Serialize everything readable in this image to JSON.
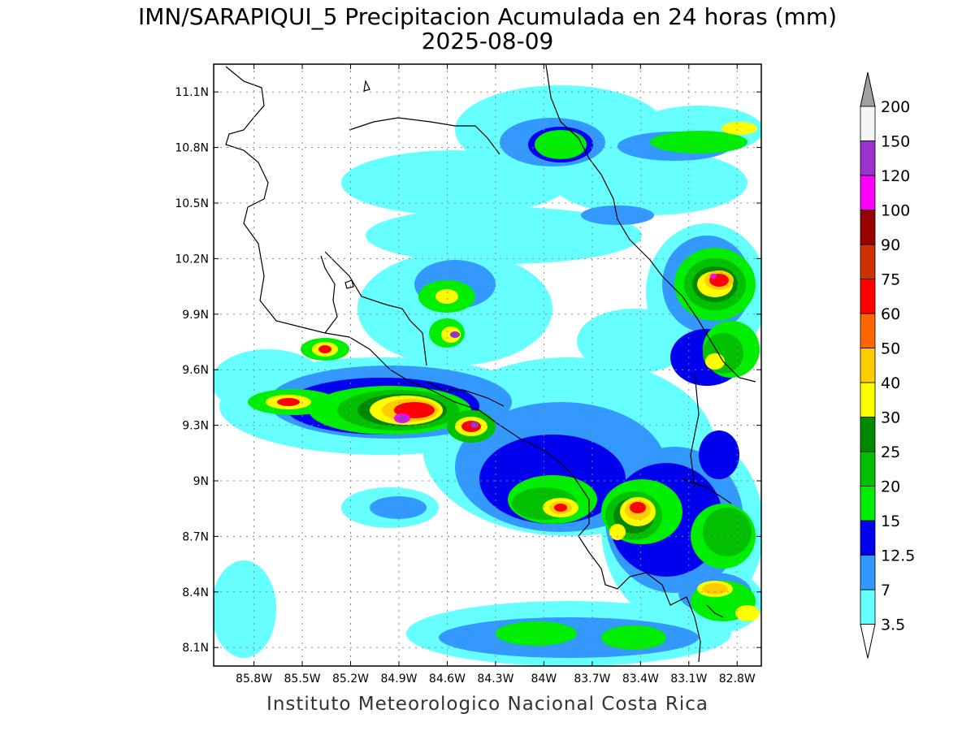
{
  "header": {
    "title": "IMN/SARAPIQUI_5 Precipitacion Acumulada en 24 horas (mm)",
    "date": "2025-08-09"
  },
  "footer": {
    "credit": "Instituto Meteorologico Nacional Costa Rica"
  },
  "map": {
    "lon_range": [
      -86.05,
      -82.65
    ],
    "lat_range": [
      8.0,
      11.25
    ],
    "lon_ticks": [
      {
        "value": -85.8,
        "label": "85.8W"
      },
      {
        "value": -85.5,
        "label": "85.5W"
      },
      {
        "value": -85.2,
        "label": "85.2W"
      },
      {
        "value": -84.9,
        "label": "84.9W"
      },
      {
        "value": -84.6,
        "label": "84.6W"
      },
      {
        "value": -84.3,
        "label": "84.3W"
      },
      {
        "value": -84.0,
        "label": "84W"
      },
      {
        "value": -83.7,
        "label": "83.7W"
      },
      {
        "value": -83.4,
        "label": "83.4W"
      },
      {
        "value": -83.1,
        "label": "83.1W"
      },
      {
        "value": -82.8,
        "label": "82.8W"
      }
    ],
    "lat_ticks": [
      {
        "value": 8.1,
        "label": "8.1N"
      },
      {
        "value": 8.4,
        "label": "8.4N"
      },
      {
        "value": 8.7,
        "label": "8.7N"
      },
      {
        "value": 9.0,
        "label": "9N"
      },
      {
        "value": 9.3,
        "label": "9.3N"
      },
      {
        "value": 9.6,
        "label": "9.6N"
      },
      {
        "value": 9.9,
        "label": "9.9N"
      },
      {
        "value": 10.2,
        "label": "10.2N"
      },
      {
        "value": 10.5,
        "label": "10.5N"
      },
      {
        "value": 10.8,
        "label": "10.8N"
      },
      {
        "value": 11.1,
        "label": "11.1N"
      }
    ],
    "grid": "dotted"
  },
  "colorbar": {
    "units": "mm",
    "bins": [
      {
        "label": "3.5",
        "color": "#66ffff"
      },
      {
        "label": "7",
        "color": "#3399ff"
      },
      {
        "label": "12.5",
        "color": "#0000ee"
      },
      {
        "label": "15",
        "color": "#00ee00"
      },
      {
        "label": "20",
        "color": "#00c000"
      },
      {
        "label": "25",
        "color": "#008800"
      },
      {
        "label": "30",
        "color": "#ffff00"
      },
      {
        "label": "40",
        "color": "#ffcc00"
      },
      {
        "label": "50",
        "color": "#ff6600"
      },
      {
        "label": "60",
        "color": "#ff0000"
      },
      {
        "label": "75",
        "color": "#cc3300"
      },
      {
        "label": "90",
        "color": "#990000"
      },
      {
        "label": "100",
        "color": "#ff00ff"
      },
      {
        "label": "120",
        "color": "#9933cc"
      },
      {
        "label": "150",
        "color": "#f5f5f5"
      },
      {
        "label": "200",
        "color": "#a0a0a0"
      }
    ]
  }
}
